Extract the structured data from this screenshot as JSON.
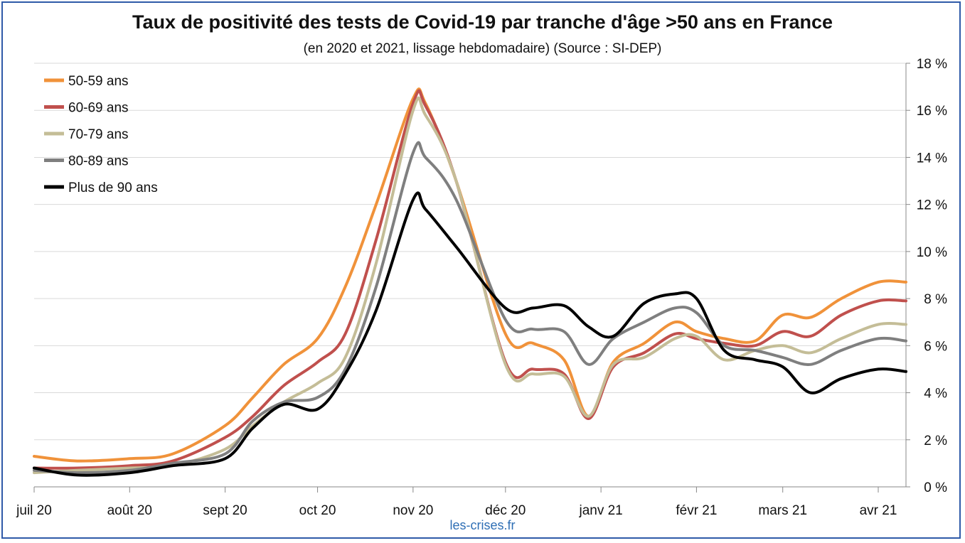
{
  "chart_data": {
    "type": "line",
    "title": "Taux de positivité des tests de Covid-19 par tranche d'âge >50 ans en France",
    "subtitle": "(en 2020 et 2021, lissage hebdomadaire) (Source : SI-DEP)",
    "source_note": "les-crises.fr",
    "x_tick_labels": [
      "juil 20",
      "août 20",
      "sept 20",
      "oct 20",
      "nov 20",
      "déc 20",
      "janv 21",
      "févr 21",
      "mars 21",
      "avr 21"
    ],
    "y_tick_labels": [
      "0 %",
      "2 %",
      "4 %",
      "6 %",
      "8 %",
      "10 %",
      "12 %",
      "14 %",
      "16 %",
      "18 %"
    ],
    "ylim": [
      0,
      18
    ],
    "y_axis_side": "right",
    "grid": "horizontal",
    "legend_position": "top-left",
    "x": [
      "2020-07-01",
      "2020-07-15",
      "2020-08-01",
      "2020-08-15",
      "2020-09-01",
      "2020-09-10",
      "2020-09-20",
      "2020-10-01",
      "2020-10-10",
      "2020-10-20",
      "2020-11-01",
      "2020-11-05",
      "2020-11-15",
      "2020-12-01",
      "2020-12-10",
      "2020-12-20",
      "2020-12-28",
      "2021-01-05",
      "2021-01-15",
      "2021-01-25",
      "2021-02-01",
      "2021-02-10",
      "2021-02-20",
      "2021-03-01",
      "2021-03-10",
      "2021-03-20",
      "2021-04-01",
      "2021-04-10"
    ],
    "series": [
      {
        "name": "50-59 ans",
        "color": "#f0923a",
        "values": [
          1.3,
          1.1,
          1.2,
          1.4,
          2.6,
          3.8,
          5.2,
          6.3,
          8.5,
          12.0,
          16.5,
          16.3,
          13.0,
          6.5,
          6.1,
          5.4,
          3.0,
          5.3,
          6.1,
          7.0,
          6.6,
          6.3,
          6.2,
          7.3,
          7.2,
          8.0,
          8.7,
          8.7
        ]
      },
      {
        "name": "60-69 ans",
        "color": "#c0504d",
        "values": [
          0.8,
          0.8,
          0.9,
          1.1,
          2.1,
          3.0,
          4.3,
          5.3,
          6.5,
          10.5,
          16.3,
          16.2,
          13.0,
          5.3,
          5.0,
          4.8,
          2.9,
          5.1,
          5.7,
          6.5,
          6.3,
          6.1,
          6.0,
          6.6,
          6.4,
          7.3,
          7.9,
          7.9
        ]
      },
      {
        "name": "70-79 ans",
        "color": "#c4bd97",
        "values": [
          0.6,
          0.7,
          0.8,
          0.9,
          1.6,
          2.6,
          3.6,
          4.4,
          5.5,
          9.5,
          16.0,
          15.8,
          13.0,
          5.2,
          4.8,
          4.7,
          3.0,
          5.2,
          5.5,
          6.3,
          6.4,
          5.4,
          5.8,
          6.0,
          5.7,
          6.3,
          6.9,
          6.9
        ]
      },
      {
        "name": "80-89 ans",
        "color": "#7f7f7f",
        "values": [
          0.7,
          0.6,
          0.7,
          1.0,
          1.4,
          2.8,
          3.6,
          3.8,
          5.0,
          8.5,
          14.2,
          14.0,
          12.2,
          7.1,
          6.7,
          6.6,
          5.2,
          6.3,
          7.0,
          7.6,
          7.4,
          6.0,
          5.8,
          5.5,
          5.2,
          5.8,
          6.3,
          6.2
        ]
      },
      {
        "name": "Plus de 90 ans",
        "color": "#000000",
        "values": [
          0.8,
          0.5,
          0.6,
          0.9,
          1.2,
          2.5,
          3.5,
          3.3,
          4.8,
          7.5,
          12.2,
          11.8,
          10.2,
          7.6,
          7.6,
          7.7,
          6.8,
          6.4,
          7.8,
          8.2,
          8.0,
          5.8,
          5.4,
          5.1,
          4.0,
          4.6,
          5.0,
          4.9
        ]
      }
    ]
  }
}
